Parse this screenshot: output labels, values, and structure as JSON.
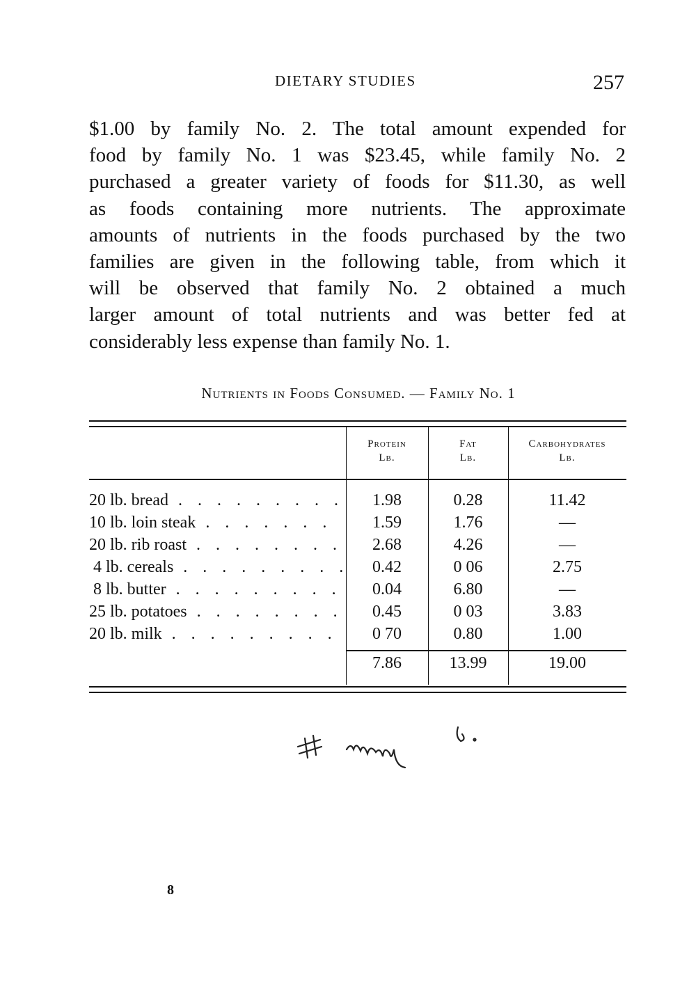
{
  "header": {
    "running_title": "DIETARY STUDIES",
    "page_number": "257"
  },
  "paragraph_lines": [
    "$1.00 by family No. 2. The total amount expended for",
    "food by family No. 1 was $23.45, while family No. 2",
    "purchased a greater variety of foods for $11.30, as well",
    "as foods containing more nutrients. The approximate",
    "amounts of nutrients in the foods purchased by the two",
    "families are given in the following table, from which it",
    "will be observed that family No. 2 obtained a much",
    "larger amount of total nutrients and was better fed at",
    "considerably less expense than family No. 1."
  ],
  "table": {
    "caption": "Nutrients in Foods Consumed. — Family No. 1",
    "headers": [
      {
        "name": "Protein",
        "unit": "Lb."
      },
      {
        "name": "Fat",
        "unit": "Lb."
      },
      {
        "name": "Carbohydrates",
        "unit": "Lb."
      }
    ],
    "rows": [
      {
        "label": "20 lb. bread",
        "protein": "1.98",
        "fat": "0.28",
        "carbs": "11.42"
      },
      {
        "label": "10 lb. loin steak",
        "protein": "1.59",
        "fat": "1.76",
        "carbs": "—"
      },
      {
        "label": "20 lb. rib roast",
        "protein": "2.68",
        "fat": "4.26",
        "carbs": "—"
      },
      {
        "label": " 4 lb. cereals",
        "protein": "0.42",
        "fat": "0 06",
        "carbs": "2.75"
      },
      {
        "label": " 8 lb. butter",
        "protein": "0.04",
        "fat": "6.80",
        "carbs": "—"
      },
      {
        "label": "25 lb. potatoes",
        "protein": "0.45",
        "fat": "0 03",
        "carbs": "3.83"
      },
      {
        "label": "20 lb. milk",
        "protein": "0 70",
        "fat": "0.80",
        "carbs": "1.00"
      }
    ],
    "totals": {
      "protein": "7.86",
      "fat": "13.99",
      "carbs": "19.00"
    }
  },
  "handwritten_note": "# may 6.",
  "footer_mark": "8"
}
